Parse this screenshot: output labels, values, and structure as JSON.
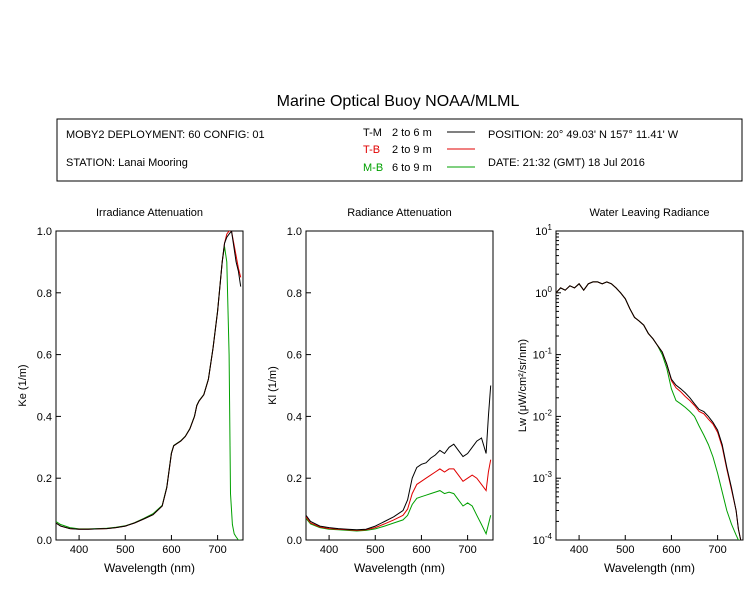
{
  "title": "Marine Optical Buoy NOAA/MLML",
  "info": {
    "deployment": "MOBY2 DEPLOYMENT: 60 CONFIG: 01",
    "station": "STATION: Lanai Mooring",
    "position": "POSITION: 20° 49.03' N   157° 11.41' W",
    "date": "DATE: 21:32 (GMT) 18 Jul 2016",
    "legend": [
      {
        "code": "T-M",
        "range": "2 to 6  m",
        "color": "#000000"
      },
      {
        "code": "T-B",
        "range": "2 to 9  m",
        "color": "#e00000"
      },
      {
        "code": "M-B",
        "range": "6 to 9  m",
        "color": "#00a000"
      }
    ]
  },
  "chart_data": [
    {
      "type": "line",
      "title": "Irradiance Attenuation",
      "xlabel": "Wavelength (nm)",
      "ylabel": "Ke  (1/m)",
      "xlim": [
        350,
        755
      ],
      "ylim": [
        0,
        1.0
      ],
      "yscale": "linear",
      "xticks": [
        400,
        500,
        600,
        700
      ],
      "yticks": [
        "0.0",
        "0.2",
        "0.4",
        "0.6",
        "0.8",
        "1.0"
      ],
      "ytick_values": [
        0,
        0.2,
        0.4,
        0.6,
        0.8,
        1.0
      ],
      "series": [
        {
          "name": "T-M",
          "color": "#000000",
          "x": [
            350,
            360,
            380,
            400,
            420,
            440,
            460,
            480,
            500,
            520,
            540,
            560,
            580,
            590,
            600,
            605,
            610,
            620,
            630,
            640,
            650,
            655,
            660,
            670,
            680,
            690,
            700,
            710,
            715,
            720,
            725,
            730,
            735,
            740,
            745,
            750
          ],
          "y": [
            0.055,
            0.045,
            0.037,
            0.035,
            0.035,
            0.036,
            0.037,
            0.04,
            0.045,
            0.055,
            0.068,
            0.082,
            0.11,
            0.17,
            0.28,
            0.305,
            0.31,
            0.32,
            0.335,
            0.36,
            0.4,
            0.435,
            0.45,
            0.47,
            0.52,
            0.62,
            0.74,
            0.9,
            0.96,
            0.98,
            0.99,
            1.0,
            0.95,
            0.9,
            0.87,
            0.82
          ]
        },
        {
          "name": "T-B",
          "color": "#e00000",
          "x": [
            350,
            360,
            380,
            400,
            420,
            440,
            460,
            480,
            500,
            520,
            540,
            560,
            580,
            590,
            600,
            605,
            610,
            620,
            630,
            640,
            650,
            655,
            660,
            670,
            680,
            690,
            700,
            710,
            715,
            720,
            725,
            730,
            735,
            740,
            745,
            750
          ],
          "y": [
            0.055,
            0.045,
            0.037,
            0.035,
            0.035,
            0.036,
            0.037,
            0.04,
            0.045,
            0.055,
            0.068,
            0.082,
            0.11,
            0.17,
            0.28,
            0.305,
            0.31,
            0.32,
            0.335,
            0.36,
            0.4,
            0.435,
            0.45,
            0.47,
            0.52,
            0.62,
            0.74,
            0.9,
            0.96,
            0.99,
            1.0,
            1.0,
            0.96,
            0.92,
            0.88,
            0.85
          ]
        },
        {
          "name": "M-B",
          "color": "#00a000",
          "x": [
            350,
            360,
            380,
            400,
            420,
            440,
            460,
            480,
            500,
            520,
            540,
            560,
            580,
            590,
            600,
            605,
            610,
            620,
            630,
            640,
            650,
            655,
            660,
            670,
            680,
            690,
            700,
            710,
            715,
            720,
            725,
            728,
            732,
            736,
            740,
            745,
            750
          ],
          "y": [
            0.06,
            0.05,
            0.04,
            0.036,
            0.036,
            0.037,
            0.038,
            0.041,
            0.046,
            0.056,
            0.07,
            0.085,
            0.112,
            0.172,
            0.282,
            0.306,
            0.311,
            0.321,
            0.336,
            0.361,
            0.401,
            0.436,
            0.451,
            0.471,
            0.521,
            0.621,
            0.742,
            0.9,
            0.95,
            0.9,
            0.6,
            0.15,
            0.05,
            0.02,
            0.01,
            0.0,
            0.0
          ]
        }
      ]
    },
    {
      "type": "line",
      "title": "Radiance Attenuation",
      "xlabel": "Wavelength (nm)",
      "ylabel": "Kl  (1/m)",
      "xlim": [
        350,
        755
      ],
      "ylim": [
        0,
        1.0
      ],
      "yscale": "linear",
      "xticks": [
        400,
        500,
        600,
        700
      ],
      "yticks": [
        "0.0",
        "0.2",
        "0.4",
        "0.6",
        "0.8",
        "1.0"
      ],
      "ytick_values": [
        0,
        0.2,
        0.4,
        0.6,
        0.8,
        1.0
      ],
      "series": [
        {
          "name": "T-M",
          "color": "#000000",
          "x": [
            350,
            360,
            380,
            400,
            420,
            440,
            460,
            480,
            500,
            520,
            540,
            560,
            570,
            580,
            590,
            600,
            610,
            620,
            630,
            640,
            650,
            660,
            670,
            680,
            690,
            700,
            710,
            720,
            730,
            740,
            745,
            750
          ],
          "y": [
            0.08,
            0.06,
            0.045,
            0.04,
            0.037,
            0.035,
            0.033,
            0.035,
            0.045,
            0.06,
            0.075,
            0.095,
            0.13,
            0.2,
            0.235,
            0.245,
            0.25,
            0.265,
            0.275,
            0.29,
            0.28,
            0.3,
            0.31,
            0.29,
            0.27,
            0.28,
            0.3,
            0.32,
            0.33,
            0.28,
            0.4,
            0.5
          ]
        },
        {
          "name": "T-B",
          "color": "#e00000",
          "x": [
            350,
            360,
            380,
            400,
            420,
            440,
            460,
            480,
            500,
            520,
            540,
            560,
            570,
            580,
            590,
            600,
            610,
            620,
            630,
            640,
            650,
            660,
            670,
            680,
            690,
            700,
            710,
            720,
            730,
            740,
            745,
            750
          ],
          "y": [
            0.075,
            0.055,
            0.042,
            0.037,
            0.035,
            0.033,
            0.031,
            0.033,
            0.04,
            0.052,
            0.065,
            0.08,
            0.1,
            0.15,
            0.18,
            0.19,
            0.2,
            0.21,
            0.22,
            0.23,
            0.22,
            0.23,
            0.23,
            0.21,
            0.19,
            0.2,
            0.21,
            0.2,
            0.18,
            0.16,
            0.22,
            0.26
          ]
        },
        {
          "name": "M-B",
          "color": "#00a000",
          "x": [
            350,
            360,
            380,
            400,
            420,
            440,
            460,
            480,
            500,
            520,
            540,
            560,
            570,
            580,
            590,
            600,
            610,
            620,
            630,
            640,
            650,
            660,
            670,
            680,
            690,
            700,
            710,
            720,
            730,
            740,
            745,
            750
          ],
          "y": [
            0.07,
            0.052,
            0.04,
            0.035,
            0.033,
            0.031,
            0.029,
            0.031,
            0.036,
            0.045,
            0.055,
            0.065,
            0.08,
            0.115,
            0.135,
            0.14,
            0.145,
            0.15,
            0.155,
            0.16,
            0.15,
            0.155,
            0.15,
            0.13,
            0.11,
            0.12,
            0.11,
            0.08,
            0.05,
            0.02,
            0.05,
            0.08
          ]
        }
      ]
    },
    {
      "type": "line",
      "title": "Water Leaving Radiance",
      "xlabel": "Wavelength (nm)",
      "ylabel": "Lw  (μW/cm²/sr/nm)",
      "xlim": [
        350,
        755
      ],
      "ylim": [
        0.0001,
        10
      ],
      "yscale": "log",
      "xticks": [
        400,
        500,
        600,
        700
      ],
      "ytick_values": [
        10,
        1,
        0.1,
        0.01,
        0.001,
        0.0001
      ],
      "yticks_log": [
        {
          "base": "10",
          "exp": "1"
        },
        {
          "base": "10",
          "exp": "0"
        },
        {
          "base": "10",
          "exp": "-1"
        },
        {
          "base": "10",
          "exp": "-2"
        },
        {
          "base": "10",
          "exp": "-3"
        },
        {
          "base": "10",
          "exp": "-4"
        }
      ],
      "series": [
        {
          "name": "T-M",
          "color": "#000000",
          "x": [
            350,
            360,
            370,
            380,
            390,
            400,
            410,
            420,
            430,
            440,
            450,
            460,
            470,
            480,
            490,
            500,
            510,
            520,
            530,
            540,
            550,
            560,
            570,
            580,
            590,
            600,
            610,
            620,
            630,
            640,
            650,
            660,
            670,
            680,
            690,
            700,
            710,
            720,
            730,
            740,
            745,
            750
          ],
          "y": [
            1.0,
            1.2,
            1.1,
            1.3,
            1.2,
            1.4,
            1.1,
            1.4,
            1.5,
            1.5,
            1.4,
            1.5,
            1.4,
            1.2,
            1.0,
            0.8,
            0.55,
            0.4,
            0.35,
            0.3,
            0.22,
            0.18,
            0.14,
            0.11,
            0.07,
            0.04,
            0.032,
            0.028,
            0.024,
            0.02,
            0.016,
            0.013,
            0.012,
            0.01,
            0.008,
            0.006,
            0.0035,
            0.0015,
            0.0007,
            0.0003,
            0.00015,
            0.0001
          ]
        },
        {
          "name": "T-B",
          "color": "#e00000",
          "x": [
            350,
            360,
            370,
            380,
            390,
            400,
            410,
            420,
            430,
            440,
            450,
            460,
            470,
            480,
            490,
            500,
            510,
            520,
            530,
            540,
            550,
            560,
            570,
            580,
            590,
            600,
            610,
            620,
            630,
            640,
            650,
            660,
            670,
            680,
            690,
            700,
            710,
            720,
            730,
            740,
            745,
            750
          ],
          "y": [
            1.0,
            1.2,
            1.1,
            1.3,
            1.2,
            1.4,
            1.1,
            1.4,
            1.5,
            1.5,
            1.4,
            1.5,
            1.4,
            1.2,
            1.0,
            0.8,
            0.55,
            0.4,
            0.35,
            0.3,
            0.22,
            0.18,
            0.14,
            0.11,
            0.07,
            0.038,
            0.029,
            0.025,
            0.021,
            0.018,
            0.015,
            0.012,
            0.011,
            0.009,
            0.0075,
            0.0055,
            0.0032,
            0.0014,
            0.00065,
            0.0003,
            0.00015,
            0.0001
          ]
        },
        {
          "name": "M-B",
          "color": "#00a000",
          "x": [
            350,
            360,
            370,
            380,
            390,
            400,
            410,
            420,
            430,
            440,
            450,
            460,
            470,
            480,
            490,
            500,
            510,
            520,
            530,
            540,
            550,
            560,
            570,
            580,
            590,
            600,
            610,
            620,
            630,
            640,
            650,
            660,
            670,
            680,
            690,
            700,
            710,
            720,
            730,
            740,
            745,
            750
          ],
          "y": [
            1.0,
            1.2,
            1.1,
            1.3,
            1.2,
            1.4,
            1.1,
            1.4,
            1.5,
            1.5,
            1.4,
            1.5,
            1.4,
            1.2,
            1.0,
            0.8,
            0.55,
            0.4,
            0.35,
            0.3,
            0.22,
            0.18,
            0.14,
            0.1,
            0.06,
            0.028,
            0.018,
            0.016,
            0.014,
            0.012,
            0.01,
            0.007,
            0.005,
            0.0035,
            0.0022,
            0.0012,
            0.0006,
            0.0003,
            0.00018,
            0.00012,
            0.0001,
            0.0001
          ]
        }
      ]
    }
  ]
}
